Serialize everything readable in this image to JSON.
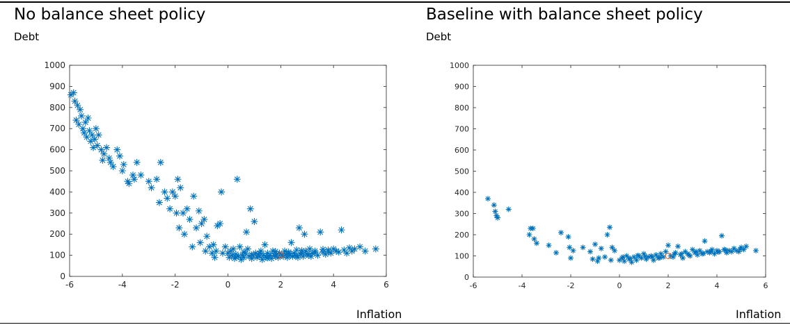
{
  "panels": [
    {
      "title": "No balance sheet policy",
      "ylabel": "Debt",
      "xlabel": "Inflation"
    },
    {
      "title": "Baseline with balance sheet policy",
      "ylabel": "Debt",
      "xlabel": "Inflation"
    }
  ],
  "colors": {
    "marker": "#0072BD",
    "steady_state": "#D95319",
    "axis": "#262626"
  },
  "chart_data": [
    {
      "type": "scatter",
      "title": "No balance sheet policy",
      "ylabel": "Debt",
      "xlabel": "Inflation",
      "xlim": [
        -6,
        6
      ],
      "ylim": [
        0,
        1000
      ],
      "xticks": [
        -6,
        -4,
        -2,
        0,
        2,
        4,
        6
      ],
      "yticks": [
        0,
        100,
        200,
        300,
        400,
        500,
        600,
        700,
        800,
        900,
        1000
      ],
      "grid": false,
      "series": [
        {
          "marker": "asterisk",
          "points": [
            [
              -5.95,
              860
            ],
            [
              -5.85,
              870
            ],
            [
              -5.8,
              830
            ],
            [
              -5.7,
              810
            ],
            [
              -5.75,
              740
            ],
            [
              -5.6,
              790
            ],
            [
              -5.65,
              720
            ],
            [
              -5.55,
              760
            ],
            [
              -5.5,
              700
            ],
            [
              -5.45,
              680
            ],
            [
              -5.4,
              730
            ],
            [
              -5.35,
              660
            ],
            [
              -5.3,
              750
            ],
            [
              -5.25,
              690
            ],
            [
              -5.2,
              640
            ],
            [
              -5.15,
              670
            ],
            [
              -5.1,
              610
            ],
            [
              -5.05,
              650
            ],
            [
              -5.0,
              700
            ],
            [
              -4.95,
              620
            ],
            [
              -4.9,
              670
            ],
            [
              -4.8,
              600
            ],
            [
              -4.75,
              550
            ],
            [
              -4.7,
              580
            ],
            [
              -4.6,
              610
            ],
            [
              -4.5,
              560
            ],
            [
              -4.45,
              540
            ],
            [
              -4.35,
              520
            ],
            [
              -4.2,
              600
            ],
            [
              -4.1,
              570
            ],
            [
              -4.0,
              500
            ],
            [
              -3.95,
              530
            ],
            [
              -3.8,
              450
            ],
            [
              -3.75,
              440
            ],
            [
              -3.6,
              480
            ],
            [
              -3.55,
              460
            ],
            [
              -3.45,
              540
            ],
            [
              -3.3,
              480
            ],
            [
              -3.0,
              450
            ],
            [
              -2.9,
              420
            ],
            [
              -2.7,
              460
            ],
            [
              -2.6,
              350
            ],
            [
              -2.55,
              540
            ],
            [
              -2.4,
              400
            ],
            [
              -2.3,
              370
            ],
            [
              -2.2,
              320
            ],
            [
              -2.1,
              400
            ],
            [
              -2.0,
              380
            ],
            [
              -1.95,
              300
            ],
            [
              -1.9,
              460
            ],
            [
              -1.85,
              230
            ],
            [
              -1.8,
              420
            ],
            [
              -1.7,
              300
            ],
            [
              -1.65,
              200
            ],
            [
              -1.55,
              320
            ],
            [
              -1.45,
              270
            ],
            [
              -1.35,
              140
            ],
            [
              -1.3,
              380
            ],
            [
              -1.2,
              230
            ],
            [
              -1.1,
              310
            ],
            [
              -1.05,
              160
            ],
            [
              -1.0,
              250
            ],
            [
              -0.9,
              270
            ],
            [
              -0.85,
              120
            ],
            [
              -0.8,
              190
            ],
            [
              -0.7,
              140
            ],
            [
              -0.6,
              110
            ],
            [
              -0.55,
              150
            ],
            [
              -0.5,
              90
            ],
            [
              -0.45,
              120
            ],
            [
              -0.4,
              240
            ],
            [
              -0.3,
              250
            ],
            [
              -0.25,
              400
            ],
            [
              -0.2,
              110
            ],
            [
              -0.1,
              140
            ],
            [
              0.0,
              110
            ],
            [
              0.05,
              90
            ],
            [
              0.1,
              120
            ],
            [
              0.15,
              100
            ],
            [
              0.2,
              130
            ],
            [
              0.25,
              85
            ],
            [
              0.3,
              105
            ],
            [
              0.35,
              460
            ],
            [
              0.4,
              95
            ],
            [
              0.45,
              140
            ],
            [
              0.5,
              80
            ],
            [
              0.55,
              100
            ],
            [
              0.6,
              90
            ],
            [
              0.65,
              110
            ],
            [
              0.7,
              210
            ],
            [
              0.75,
              130
            ],
            [
              0.8,
              95
            ],
            [
              0.85,
              320
            ],
            [
              0.9,
              85
            ],
            [
              0.95,
              100
            ],
            [
              1.0,
              260
            ],
            [
              1.05,
              110
            ],
            [
              1.1,
              90
            ],
            [
              1.15,
              105
            ],
            [
              1.2,
              95
            ],
            [
              1.25,
              120
            ],
            [
              1.3,
              80
            ],
            [
              1.35,
              100
            ],
            [
              1.4,
              150
            ],
            [
              1.45,
              90
            ],
            [
              1.5,
              110
            ],
            [
              1.55,
              95
            ],
            [
              1.6,
              100
            ],
            [
              1.65,
              85
            ],
            [
              1.7,
              120
            ],
            [
              1.75,
              100
            ],
            [
              1.8,
              95
            ],
            [
              1.85,
              105
            ],
            [
              1.9,
              90
            ],
            [
              1.95,
              110
            ],
            [
              2.05,
              100
            ],
            [
              2.1,
              95
            ],
            [
              2.15,
              120
            ],
            [
              2.2,
              105
            ],
            [
              2.25,
              90
            ],
            [
              2.3,
              115
            ],
            [
              2.35,
              100
            ],
            [
              2.4,
              160
            ],
            [
              2.45,
              95
            ],
            [
              2.5,
              110
            ],
            [
              2.55,
              100
            ],
            [
              2.6,
              125
            ],
            [
              2.65,
              90
            ],
            [
              2.7,
              230
            ],
            [
              2.75,
              105
            ],
            [
              2.8,
              110
            ],
            [
              2.85,
              95
            ],
            [
              2.9,
              200
            ],
            [
              2.95,
              120
            ],
            [
              3.0,
              105
            ],
            [
              3.05,
              100
            ],
            [
              3.1,
              130
            ],
            [
              3.15,
              95
            ],
            [
              3.2,
              110
            ],
            [
              3.3,
              120
            ],
            [
              3.4,
              100
            ],
            [
              3.5,
              210
            ],
            [
              3.6,
              115
            ],
            [
              3.7,
              105
            ],
            [
              3.8,
              125
            ],
            [
              3.9,
              110
            ],
            [
              4.0,
              130
            ],
            [
              4.1,
              120
            ],
            [
              4.2,
              115
            ],
            [
              4.3,
              220
            ],
            [
              4.4,
              125
            ],
            [
              4.5,
              110
            ],
            [
              4.6,
              135
            ],
            [
              4.7,
              120
            ],
            [
              4.8,
              130
            ],
            [
              5.0,
              140
            ],
            [
              5.2,
              120
            ],
            [
              5.6,
              130
            ],
            [
              0.6,
              115
            ],
            [
              1.2,
              110
            ],
            [
              1.8,
              118
            ],
            [
              2.3,
              108
            ],
            [
              2.8,
              122
            ],
            [
              3.3,
              112
            ],
            [
              3.8,
              118
            ],
            [
              0.3,
              92
            ],
            [
              0.9,
              102
            ],
            [
              1.5,
              88
            ],
            [
              2.6,
              98
            ],
            [
              3.6,
              128
            ]
          ]
        },
        {
          "name": "",
          "marker": "circle",
          "points": [
            [
              2.0,
              100
            ]
          ]
        }
      ]
    },
    {
      "type": "scatter",
      "title": "Baseline with balance sheet policy",
      "ylabel": "Debt",
      "xlabel": "Inflation",
      "xlim": [
        -6,
        6
      ],
      "ylim": [
        0,
        1000
      ],
      "xticks": [
        -6,
        -4,
        -2,
        0,
        2,
        4,
        6
      ],
      "yticks": [
        0,
        100,
        200,
        300,
        400,
        500,
        600,
        700,
        800,
        900,
        1000
      ],
      "grid": false,
      "series": [
        {
          "marker": "asterisk",
          "points": [
            [
              -5.4,
              370
            ],
            [
              -5.15,
              340
            ],
            [
              -5.1,
              310
            ],
            [
              -5.05,
              290
            ],
            [
              -5.0,
              280
            ],
            [
              -4.55,
              320
            ],
            [
              -3.65,
              230
            ],
            [
              -3.55,
              230
            ],
            [
              -3.7,
              200
            ],
            [
              -3.5,
              180
            ],
            [
              -3.4,
              160
            ],
            [
              -2.9,
              150
            ],
            [
              -2.6,
              115
            ],
            [
              -2.4,
              210
            ],
            [
              -2.1,
              190
            ],
            [
              -2.05,
              140
            ],
            [
              -2.0,
              90
            ],
            [
              -1.9,
              125
            ],
            [
              -1.5,
              140
            ],
            [
              -1.2,
              120
            ],
            [
              -1.1,
              85
            ],
            [
              -1.0,
              155
            ],
            [
              -0.9,
              75
            ],
            [
              -0.85,
              90
            ],
            [
              -0.75,
              135
            ],
            [
              -0.6,
              95
            ],
            [
              -0.5,
              200
            ],
            [
              -0.4,
              235
            ],
            [
              -0.35,
              80
            ],
            [
              -0.3,
              140
            ],
            [
              -0.2,
              125
            ],
            [
              0.0,
              80
            ],
            [
              0.1,
              90
            ],
            [
              0.2,
              75
            ],
            [
              0.3,
              100
            ],
            [
              0.4,
              85
            ],
            [
              0.5,
              70
            ],
            [
              0.6,
              95
            ],
            [
              0.7,
              80
            ],
            [
              0.8,
              100
            ],
            [
              0.9,
              90
            ],
            [
              1.0,
              110
            ],
            [
              1.1,
              85
            ],
            [
              1.2,
              95
            ],
            [
              1.3,
              100
            ],
            [
              1.4,
              80
            ],
            [
              1.5,
              105
            ],
            [
              1.6,
              90
            ],
            [
              1.7,
              110
            ],
            [
              1.8,
              95
            ],
            [
              1.9,
              120
            ],
            [
              2.0,
              150
            ],
            [
              2.1,
              100
            ],
            [
              2.2,
              95
            ],
            [
              2.3,
              115
            ],
            [
              2.4,
              145
            ],
            [
              2.5,
              105
            ],
            [
              2.6,
              90
            ],
            [
              2.7,
              120
            ],
            [
              2.8,
              110
            ],
            [
              2.9,
              100
            ],
            [
              3.0,
              130
            ],
            [
              3.1,
              115
            ],
            [
              3.2,
              105
            ],
            [
              3.3,
              125
            ],
            [
              3.4,
              110
            ],
            [
              3.5,
              170
            ],
            [
              3.6,
              120
            ],
            [
              3.7,
              115
            ],
            [
              3.8,
              130
            ],
            [
              3.9,
              110
            ],
            [
              4.0,
              125
            ],
            [
              4.1,
              120
            ],
            [
              4.2,
              195
            ],
            [
              4.3,
              130
            ],
            [
              4.4,
              115
            ],
            [
              4.5,
              125
            ],
            [
              4.6,
              120
            ],
            [
              4.7,
              135
            ],
            [
              4.8,
              125
            ],
            [
              4.9,
              120
            ],
            [
              5.0,
              140
            ],
            [
              5.1,
              130
            ],
            [
              5.2,
              145
            ],
            [
              5.6,
              125
            ],
            [
              0.45,
              88
            ],
            [
              1.05,
              98
            ],
            [
              1.65,
              92
            ],
            [
              2.25,
              108
            ],
            [
              2.85,
              104
            ],
            [
              3.45,
              112
            ],
            [
              4.05,
              118
            ],
            [
              0.75,
              102
            ],
            [
              1.35,
              95
            ],
            [
              2.55,
              110
            ],
            [
              3.15,
              120
            ],
            [
              3.75,
              122
            ],
            [
              4.35,
              128
            ],
            [
              4.95,
              132
            ],
            [
              0.15,
              95
            ]
          ]
        },
        {
          "name": "",
          "marker": "circle",
          "points": [
            [
              2.0,
              100
            ]
          ]
        }
      ]
    }
  ]
}
